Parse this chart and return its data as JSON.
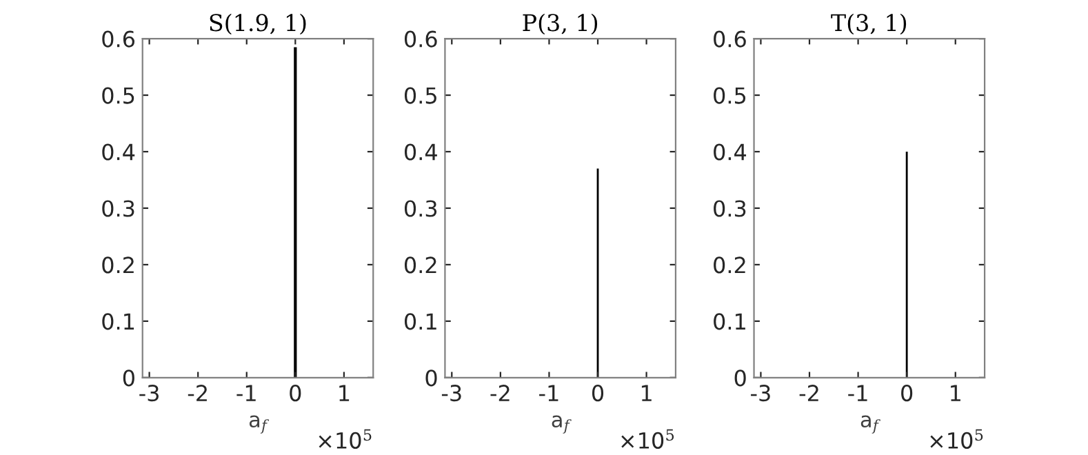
{
  "chart_data": [
    {
      "type": "histogram",
      "title": "S(1.9, 1)",
      "xlabel": "a$_{f}$",
      "bins": [
        -0.03,
        0.03
      ],
      "values": [
        0.585
      ],
      "color": "#000000",
      "xlim": [
        -3.14,
        1.6
      ],
      "xticks": [
        -3,
        -2,
        -1,
        0,
        1
      ],
      "ylim": [
        0,
        0.6
      ],
      "yticks": [
        0,
        0.1,
        0.2,
        0.3,
        0.4,
        0.5,
        0.6
      ],
      "annotations": [
        "×10$^{5}$"
      ]
    },
    {
      "type": "histogram",
      "title": "P(3, 1)",
      "xlabel": "a$_{f}$",
      "bins": [
        -0.02,
        0.02
      ],
      "values": [
        0.37
      ],
      "color": "#000000",
      "xlim": [
        -3.14,
        1.6
      ],
      "xticks": [
        -3,
        -2,
        -1,
        0,
        1
      ],
      "ylim": [
        0,
        0.6
      ],
      "yticks": [
        0,
        0.1,
        0.2,
        0.3,
        0.4,
        0.5,
        0.6
      ],
      "annotations": [
        "×10$^{5}$"
      ]
    },
    {
      "type": "histogram",
      "title": "T(3, 1)",
      "xlabel": "a$_{f}$",
      "bins": [
        -0.02,
        0.02
      ],
      "values": [
        0.4
      ],
      "color": "#000000",
      "xlim": [
        -3.14,
        1.6
      ],
      "xticks": [
        -3,
        -2,
        -1,
        0,
        1
      ],
      "ylim": [
        0,
        0.6
      ],
      "yticks": [
        0,
        0.1,
        0.2,
        0.3,
        0.4,
        0.5,
        0.6
      ],
      "annotations": [
        "×10$^{5}$"
      ]
    }
  ]
}
